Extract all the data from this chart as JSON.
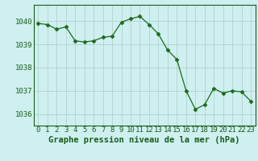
{
  "x": [
    0,
    1,
    2,
    3,
    4,
    5,
    6,
    7,
    8,
    9,
    10,
    11,
    12,
    13,
    14,
    15,
    16,
    17,
    18,
    19,
    20,
    21,
    22,
    23
  ],
  "y": [
    1039.9,
    1039.85,
    1039.65,
    1039.75,
    1039.15,
    1039.1,
    1039.15,
    1039.3,
    1039.35,
    1039.95,
    1040.1,
    1040.2,
    1039.85,
    1039.45,
    1038.75,
    1038.35,
    1037.0,
    1036.2,
    1036.4,
    1037.1,
    1036.9,
    1037.0,
    1036.95,
    1036.55
  ],
  "line_color": "#1a6b1a",
  "marker": "D",
  "marker_size": 2.5,
  "bg_color": "#cff0f0",
  "grid_color": "#b0c8c8",
  "label_color": "#1a5c1a",
  "ylim": [
    1035.5,
    1040.7
  ],
  "xlim": [
    -0.5,
    23.5
  ],
  "yticks": [
    1036,
    1037,
    1038,
    1039,
    1040
  ],
  "xticks": [
    0,
    1,
    2,
    3,
    4,
    5,
    6,
    7,
    8,
    9,
    10,
    11,
    12,
    13,
    14,
    15,
    16,
    17,
    18,
    19,
    20,
    21,
    22,
    23
  ],
  "xlabel": "Graphe pression niveau de la mer (hPa)",
  "xlabel_fontsize": 7.5,
  "tick_fontsize": 6.5
}
